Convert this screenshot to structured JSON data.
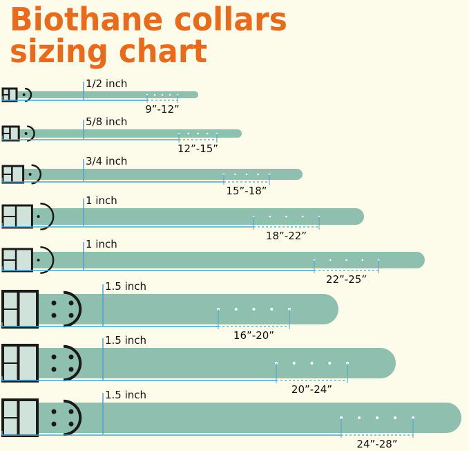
{
  "title": {
    "line1": "Biothane collars",
    "line2": "sizing chart"
  },
  "colors": {
    "title": "#ea6a1c",
    "strap": "#8fbfae",
    "hardware": "#1a1a1a",
    "measure_line": "#4aa3d0",
    "background": "#fdfbea"
  },
  "collars": [
    {
      "width_label": "1/2 inch",
      "size_range": "9”-12”"
    },
    {
      "width_label": "5/8 inch",
      "size_range": "12”-15”"
    },
    {
      "width_label": "3/4 inch",
      "size_range": "15”-18”"
    },
    {
      "width_label": "1 inch",
      "size_range": "18”-22”"
    },
    {
      "width_label": "1 inch",
      "size_range": "22”-25”"
    },
    {
      "width_label": "1.5 inch",
      "size_range": "16”-20”"
    },
    {
      "width_label": "1.5 inch",
      "size_range": "20”-24”"
    },
    {
      "width_label": "1.5 inch",
      "size_range": "24”-28”"
    }
  ]
}
